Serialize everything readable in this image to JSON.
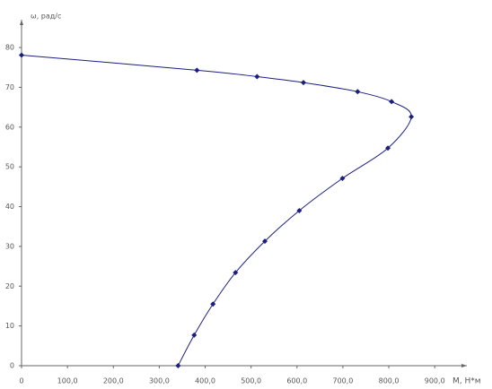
{
  "chart_data": {
    "type": "line",
    "x_label": "М, Н*м",
    "y_label": "ω, рад/с",
    "xlim": [
      0,
      970
    ],
    "ylim": [
      0,
      87
    ],
    "xticks": [
      0,
      {
        "value": 100,
        "label": "100,0"
      },
      {
        "value": 200,
        "label": "200,0"
      },
      {
        "value": 300,
        "label": "300,0"
      },
      {
        "value": 400,
        "label": "400,0"
      },
      {
        "value": 500,
        "label": "500,0"
      },
      {
        "value": 600,
        "label": "600,0"
      },
      {
        "value": 700,
        "label": "700,0"
      },
      {
        "value": 800,
        "label": "800,0"
      },
      {
        "value": 900,
        "label": "900,0"
      }
    ],
    "yticks": [
      0,
      10,
      20,
      30,
      40,
      50,
      60,
      70,
      80
    ],
    "grid": false,
    "series": [
      {
        "color": "#1a1f80",
        "x": [
          0,
          382,
          513,
          614,
          732,
          806,
          849,
          798,
          699,
          605,
          530,
          466,
          417,
          376,
          341
        ],
        "values": [
          78.1,
          74.3,
          72.7,
          71.2,
          68.9,
          66.4,
          62.6,
          54.7,
          47.1,
          39.0,
          31.3,
          23.4,
          15.5,
          7.7,
          0
        ]
      }
    ]
  }
}
